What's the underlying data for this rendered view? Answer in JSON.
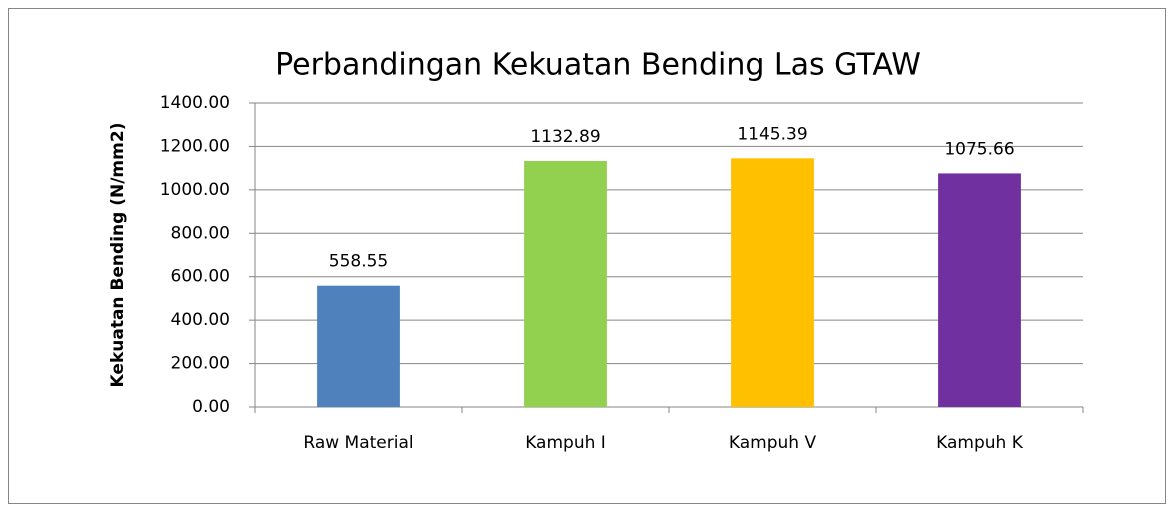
{
  "chart_data": {
    "type": "bar",
    "title": "Perbandingan Kekuatan Bending Las GTAW",
    "y_label": "Kekuatan Bending (N/mm2)",
    "categories": [
      "Raw Material",
      "Kampuh I",
      "Kampuh V",
      "Kampuh K"
    ],
    "values": [
      558.55,
      1132.89,
      1145.39,
      1075.66
    ],
    "colors": [
      "#4f81bd",
      "#92d050",
      "#ffc000",
      "#7030a0"
    ],
    "ylim": [
      0,
      1400
    ],
    "yticks": [
      {
        "value": 0,
        "label": "0.00"
      },
      {
        "value": 200,
        "label": "200.00"
      },
      {
        "value": 400,
        "label": "400.00"
      },
      {
        "value": 600,
        "label": "600.00"
      },
      {
        "value": 800,
        "label": "800.00"
      },
      {
        "value": 1000,
        "label": "1000.00"
      },
      {
        "value": 1200,
        "label": "1200.00"
      },
      {
        "value": 1400,
        "label": "1400.00"
      }
    ],
    "grid": true
  }
}
